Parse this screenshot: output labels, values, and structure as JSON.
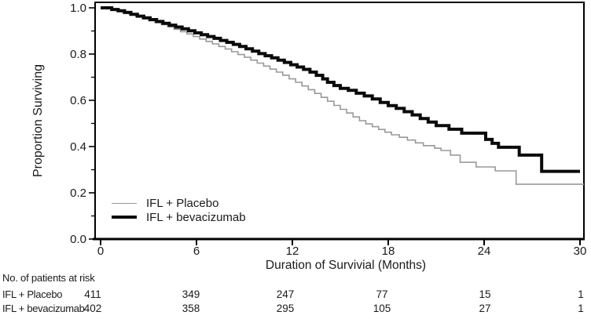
{
  "figure": {
    "background": "#ffffff",
    "text_color": "#1a1a1a",
    "axis_color": "#000000"
  },
  "chart_data": {
    "type": "line",
    "subtype": "kaplan-meier-step",
    "title": "",
    "xlabel": "Duration of Survivial (Months)",
    "ylabel": "Proportion Surviving",
    "xlim": [
      0,
      30
    ],
    "ylim": [
      0.0,
      1.0
    ],
    "grid": false,
    "legend_position": "inside-lower-left",
    "x_tick_labels": [
      "0",
      "6",
      "12",
      "18",
      "24",
      "30"
    ],
    "y_tick_labels": [
      "1.0",
      "0.8",
      "0.6",
      "0.4",
      "0.2",
      "0.0"
    ],
    "y_minor_ticks": [
      0.9,
      0.7,
      0.5,
      0.3,
      0.1
    ],
    "series": [
      {
        "name": "IFL + Placebo",
        "color": "#999999",
        "line_width": 1.6,
        "points": [
          [
            0,
            1.0
          ],
          [
            0.3,
            1.0
          ],
          [
            0.65,
            0.994
          ],
          [
            1.0,
            0.987
          ],
          [
            1.4,
            0.979
          ],
          [
            1.8,
            0.971
          ],
          [
            2.2,
            0.962
          ],
          [
            2.6,
            0.953
          ],
          [
            3.0,
            0.944
          ],
          [
            3.4,
            0.936
          ],
          [
            3.8,
            0.927
          ],
          [
            4.2,
            0.917
          ],
          [
            4.6,
            0.907
          ],
          [
            5.0,
            0.897
          ],
          [
            5.4,
            0.887
          ],
          [
            5.8,
            0.876
          ],
          [
            6.2,
            0.865
          ],
          [
            6.6,
            0.855
          ],
          [
            7.0,
            0.844
          ],
          [
            7.4,
            0.833
          ],
          [
            7.8,
            0.822
          ],
          [
            8.2,
            0.81
          ],
          [
            8.6,
            0.798
          ],
          [
            9.0,
            0.786
          ],
          [
            9.4,
            0.774
          ],
          [
            9.8,
            0.761
          ],
          [
            10.2,
            0.748
          ],
          [
            10.6,
            0.735
          ],
          [
            11.0,
            0.722
          ],
          [
            11.4,
            0.708
          ],
          [
            11.8,
            0.693
          ],
          [
            12.2,
            0.678
          ],
          [
            12.6,
            0.662
          ],
          [
            13.0,
            0.646
          ],
          [
            13.4,
            0.63
          ],
          [
            13.8,
            0.613
          ],
          [
            14.2,
            0.596
          ],
          [
            14.6,
            0.578
          ],
          [
            15.0,
            0.561
          ],
          [
            15.4,
            0.545
          ],
          [
            15.8,
            0.528
          ],
          [
            16.2,
            0.512
          ],
          [
            16.6,
            0.498
          ],
          [
            17.0,
            0.486
          ],
          [
            17.4,
            0.474
          ],
          [
            17.8,
            0.462
          ],
          [
            18.2,
            0.451
          ],
          [
            18.7,
            0.44
          ],
          [
            19.2,
            0.428
          ],
          [
            19.7,
            0.416
          ],
          [
            20.2,
            0.404
          ],
          [
            20.9,
            0.393
          ],
          [
            21.3,
            0.383
          ],
          [
            21.9,
            0.363
          ],
          [
            22.5,
            0.332
          ],
          [
            23.5,
            0.312
          ],
          [
            24.7,
            0.295
          ],
          [
            26.0,
            0.237
          ],
          [
            30.25,
            0.237
          ]
        ]
      },
      {
        "name": "IFL + bevacizumab",
        "color": "#0a0a0a",
        "line_width": 4,
        "points": [
          [
            0,
            1.0
          ],
          [
            0.35,
            1.0
          ],
          [
            0.7,
            0.993
          ],
          [
            1.1,
            0.987
          ],
          [
            1.5,
            0.98
          ],
          [
            1.9,
            0.972
          ],
          [
            2.3,
            0.964
          ],
          [
            2.7,
            0.957
          ],
          [
            3.1,
            0.949
          ],
          [
            3.5,
            0.941
          ],
          [
            3.9,
            0.933
          ],
          [
            4.3,
            0.925
          ],
          [
            4.7,
            0.917
          ],
          [
            5.1,
            0.909
          ],
          [
            5.5,
            0.901
          ],
          [
            5.9,
            0.892
          ],
          [
            6.3,
            0.884
          ],
          [
            6.7,
            0.876
          ],
          [
            7.1,
            0.868
          ],
          [
            7.5,
            0.859
          ],
          [
            7.9,
            0.851
          ],
          [
            8.3,
            0.842
          ],
          [
            8.7,
            0.833
          ],
          [
            9.1,
            0.823
          ],
          [
            9.5,
            0.813
          ],
          [
            9.9,
            0.802
          ],
          [
            10.3,
            0.793
          ],
          [
            10.7,
            0.784
          ],
          [
            11.1,
            0.774
          ],
          [
            11.5,
            0.764
          ],
          [
            11.9,
            0.754
          ],
          [
            12.3,
            0.744
          ],
          [
            12.7,
            0.734
          ],
          [
            13.1,
            0.722
          ],
          [
            13.5,
            0.708
          ],
          [
            13.9,
            0.693
          ],
          [
            14.2,
            0.678
          ],
          [
            14.6,
            0.664
          ],
          [
            15.0,
            0.652
          ],
          [
            15.5,
            0.643
          ],
          [
            16.0,
            0.631
          ],
          [
            16.5,
            0.619
          ],
          [
            17.0,
            0.606
          ],
          [
            17.5,
            0.591
          ],
          [
            18.0,
            0.577
          ],
          [
            18.5,
            0.565
          ],
          [
            19.0,
            0.551
          ],
          [
            19.5,
            0.537
          ],
          [
            20.0,
            0.521
          ],
          [
            20.5,
            0.506
          ],
          [
            21.0,
            0.491
          ],
          [
            21.8,
            0.475
          ],
          [
            22.6,
            0.458
          ],
          [
            24.1,
            0.431
          ],
          [
            24.5,
            0.414
          ],
          [
            24.9,
            0.397
          ],
          [
            26.2,
            0.363
          ],
          [
            27.6,
            0.293
          ],
          [
            30.0,
            0.293
          ]
        ]
      }
    ],
    "at_risk_table": {
      "header": "No. of patients at risk",
      "months": [
        0,
        6,
        12,
        18,
        24,
        30
      ],
      "rows": [
        {
          "label": "IFL + Placebo",
          "values": [
            "411",
            "349",
            "247",
            "77",
            "15",
            "1"
          ]
        },
        {
          "label": "IFL + bevacizumab",
          "values": [
            "402",
            "358",
            "295",
            "105",
            "27",
            "1"
          ]
        }
      ]
    }
  }
}
